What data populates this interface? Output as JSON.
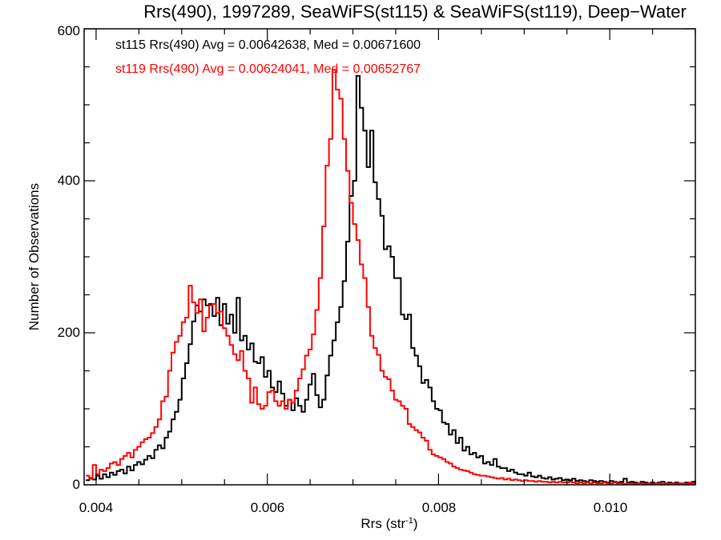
{
  "chart_data": {
    "type": "histogram-step",
    "title": "Rrs(490), 1997289, SeaWiFS(st115) & SeaWiFS(st119), Deep−Water",
    "xlabel": "Rrs (str",
    "xlabel_sup": "-1",
    "xlabel_close": ")",
    "ylabel": "Number of Observations",
    "xlim": [
      0.00386,
      0.011
    ],
    "ylim": [
      0,
      600
    ],
    "x_ticks": [
      0.004,
      0.006,
      0.008,
      0.01
    ],
    "x_tick_labels": [
      "0.004",
      "0.006",
      "0.008",
      "0.010"
    ],
    "x_minor_step": 0.0005,
    "y_ticks": [
      0,
      200,
      400,
      600
    ],
    "y_tick_labels": [
      "0",
      "200",
      "400",
      "600"
    ],
    "y_minor_step": 50,
    "grid": false,
    "bin_start": 0.00388,
    "bin_width": 4e-05,
    "legend": [
      {
        "text": "st115 Rrs(490) Avg = 0.00642638, Med = 0.00671600",
        "color": "#000000"
      },
      {
        "text": "st119 Rrs(490) Avg = 0.00624041, Med = 0.00652767",
        "color": "#ff0000"
      }
    ],
    "series": [
      {
        "name": "st115",
        "color": "#000000",
        "values": [
          6,
          9,
          7,
          12,
          8,
          14,
          10,
          16,
          13,
          18,
          20,
          15,
          24,
          19,
          26,
          30,
          27,
          33,
          38,
          35,
          46,
          52,
          48,
          62,
          70,
          86,
          96,
          112,
          140,
          160,
          185,
          215,
          236,
          228,
          244,
          236,
          238,
          222,
          246,
          210,
          238,
          212,
          224,
          200,
          246,
          190,
          196,
          178,
          186,
          162,
          160,
          168,
          142,
          150,
          128,
          122,
          136,
          120,
          104,
          112,
          98,
          114,
          104,
          96,
          112,
          132,
          146,
          118,
          102,
          112,
          144,
          170,
          190,
          214,
          234,
          268,
          320,
          380,
          400,
          538,
          496,
          466,
          418,
          466,
          398,
          376,
          354,
          310,
          314,
          300,
          272,
          272,
          224,
          218,
          224,
          180,
          170,
          156,
          134,
          138,
          128,
          110,
          100,
          98,
          82,
          80,
          66,
          72,
          55,
          62,
          45,
          50,
          40,
          42,
          36,
          38,
          28,
          30,
          26,
          34,
          24,
          22,
          22,
          18,
          20,
          16,
          14,
          14,
          12,
          16,
          11,
          10,
          12,
          9,
          8,
          10,
          7,
          8,
          9,
          6,
          7,
          6,
          8,
          5,
          6,
          5,
          4,
          6,
          5,
          4,
          5,
          4,
          3,
          5,
          4,
          3,
          4,
          8,
          3,
          4,
          3,
          2,
          4,
          3,
          2,
          3,
          2,
          3,
          4,
          2,
          3,
          2,
          3,
          2,
          2,
          3,
          2,
          4,
          2
        ]
      },
      {
        "name": "st119",
        "color": "#ff0000",
        "values": [
          12,
          8,
          26,
          14,
          20,
          18,
          22,
          28,
          30,
          26,
          34,
          38,
          42,
          36,
          46,
          50,
          56,
          60,
          62,
          68,
          76,
          86,
          110,
          116,
          150,
          174,
          188,
          196,
          214,
          220,
          262,
          240,
          226,
          244,
          202,
          220,
          236,
          238,
          226,
          228,
          206,
          196,
          184,
          172,
          164,
          176,
          150,
          140,
          108,
          128,
          106,
          100,
          104,
          122,
          124,
          110,
          104,
          110,
          100,
          112,
          108,
          124,
          140,
          152,
          170,
          178,
          198,
          230,
          272,
          340,
          420,
          455,
          546,
          520,
          508,
          455,
          413,
          371,
          343,
          322,
          290,
          272,
          234,
          196,
          180,
          171,
          150,
          142,
          139,
          124,
          112,
          110,
          104,
          100,
          80,
          76,
          72,
          69,
          62,
          58,
          46,
          40,
          38,
          36,
          34,
          30,
          28,
          24,
          22,
          20,
          19,
          18,
          16,
          14,
          13,
          12,
          12,
          11,
          10,
          9,
          8,
          9,
          7,
          8,
          6,
          7,
          6,
          5,
          6,
          5,
          5,
          4,
          5,
          4,
          4,
          3,
          4,
          3,
          4,
          3,
          3,
          4,
          3,
          2,
          3,
          2,
          3,
          2,
          3,
          2,
          2,
          3,
          2,
          2,
          3,
          2,
          2,
          1,
          2,
          2,
          1,
          2,
          2,
          1,
          2,
          1,
          2,
          2,
          1,
          2,
          1,
          2,
          1,
          2,
          2,
          1,
          3,
          2
        ]
      }
    ]
  }
}
